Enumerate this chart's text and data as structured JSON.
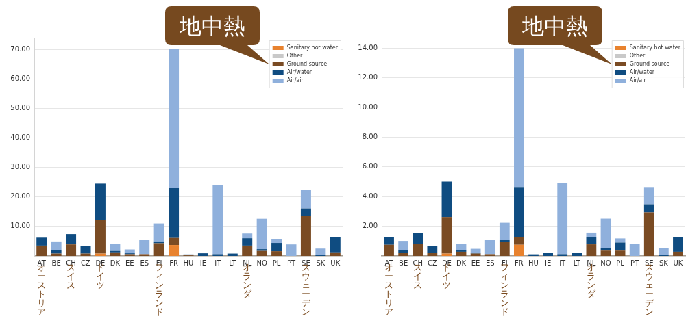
{
  "chart_data": [
    {
      "type": "bar",
      "stacked": true,
      "categories": [
        "AT",
        "BE",
        "CH",
        "CZ",
        "DE",
        "DK",
        "EE",
        "ES",
        "FI",
        "FR",
        "HU",
        "IE",
        "IT",
        "LT",
        "NL",
        "NO",
        "PL",
        "PT",
        "SE",
        "SK",
        "UK"
      ],
      "series": [
        {
          "name": "Sanitary hot water",
          "color": "#e8822e",
          "values": [
            0,
            0,
            0,
            0,
            0.8,
            0,
            0,
            0,
            0,
            3.7,
            0,
            0,
            0,
            0,
            0,
            0,
            0,
            0,
            0,
            0,
            0
          ]
        },
        {
          "name": "Other",
          "color": "#c9c9c9",
          "values": [
            0,
            0,
            0,
            0,
            0,
            0,
            0,
            0,
            0,
            0,
            0,
            0,
            0,
            0,
            0,
            0,
            0,
            0,
            0,
            0,
            0
          ]
        },
        {
          "name": "Ground source",
          "color": "#7a4b23",
          "values": [
            3.5,
            0.8,
            3.9,
            0.8,
            11.5,
            1.2,
            0.6,
            0.6,
            4.3,
            2.4,
            0.2,
            0,
            0,
            0,
            3.5,
            1.7,
            1.6,
            0,
            13.6,
            0,
            1.2
          ]
        },
        {
          "name": "Air/water",
          "color": "#0f4c81",
          "values": [
            2.7,
            1.1,
            3.5,
            2.5,
            12.2,
            0.5,
            0.3,
            0,
            0.6,
            17.0,
            0.3,
            0.9,
            0.6,
            0.8,
            2.5,
            0.6,
            2.8,
            0,
            2.5,
            0.4,
            5.2
          ]
        },
        {
          "name": "Air/air",
          "color": "#8fb0dc",
          "values": [
            0,
            3.0,
            0,
            0,
            0,
            2.3,
            1.3,
            4.8,
            6.1,
            47.2,
            0,
            0,
            23.5,
            0,
            1.6,
            10.3,
            1.4,
            3.9,
            6.3,
            2.1,
            0
          ]
        }
      ],
      "ylim": [
        0,
        74
      ],
      "yticks": [
        {
          "value": 10,
          "label": "10.00"
        },
        {
          "value": 20,
          "label": "20.00"
        },
        {
          "value": 30,
          "label": "30.00"
        },
        {
          "value": 40,
          "label": "40.00"
        },
        {
          "value": 50,
          "label": "50.00"
        },
        {
          "value": 60,
          "label": "60.00"
        },
        {
          "value": 70,
          "label": "70.00"
        }
      ],
      "grid": "y",
      "legend": "top right",
      "annotations": [
        "地中熱",
        "オーストリア",
        "スイス",
        "ドイツ",
        "フィンランド",
        "オランダ",
        "スウェーデン"
      ]
    },
    {
      "type": "bar",
      "stacked": true,
      "categories": [
        "AT",
        "BE",
        "CH",
        "CZ",
        "DE",
        "DK",
        "EE",
        "ES",
        "FI",
        "FR",
        "HU",
        "IE",
        "IT",
        "LT",
        "NL",
        "NO",
        "PL",
        "PT",
        "SE",
        "SK",
        "UK"
      ],
      "series": [
        {
          "name": "Sanitary hot water",
          "color": "#e8822e",
          "values": [
            0,
            0,
            0,
            0,
            0.16,
            0,
            0,
            0,
            0,
            0.75,
            0,
            0,
            0,
            0,
            0,
            0,
            0,
            0,
            0,
            0,
            0
          ]
        },
        {
          "name": "Other",
          "color": "#c9c9c9",
          "values": [
            0,
            0,
            0,
            0,
            0,
            0,
            0,
            0,
            0,
            0,
            0,
            0,
            0,
            0,
            0,
            0,
            0,
            0,
            0,
            0,
            0
          ]
        },
        {
          "name": "Ground source",
          "color": "#7a4b23",
          "values": [
            0.75,
            0.2,
            0.83,
            0.2,
            2.46,
            0.28,
            0.16,
            0.12,
            0.95,
            0.5,
            0,
            0,
            0,
            0,
            0.78,
            0.36,
            0.36,
            0,
            2.93,
            0,
            0.28
          ]
        },
        {
          "name": "Air/water",
          "color": "#0f4c81",
          "values": [
            0.54,
            0.19,
            0.7,
            0.47,
            2.38,
            0.11,
            0.07,
            0,
            0.14,
            3.39,
            0.11,
            0.2,
            0.12,
            0.2,
            0.48,
            0.19,
            0.54,
            0,
            0.55,
            0.08,
            0.98
          ]
        },
        {
          "name": "Air/air",
          "color": "#8fb0dc",
          "values": [
            0,
            0.62,
            0,
            0,
            0,
            0.4,
            0.25,
            0.98,
            1.14,
            9.35,
            0,
            0,
            4.76,
            0,
            0.31,
            1.96,
            0.28,
            0.79,
            1.16,
            0.43,
            0
          ]
        }
      ],
      "ylim": [
        0,
        14.7
      ],
      "yticks": [
        {
          "value": 2,
          "label": "2.00"
        },
        {
          "value": 4,
          "label": "4.00"
        },
        {
          "value": 6,
          "label": "6.00"
        },
        {
          "value": 8,
          "label": "8.00"
        },
        {
          "value": 10,
          "label": "10.00"
        },
        {
          "value": 12,
          "label": "12.00"
        },
        {
          "value": 14,
          "label": "14.00"
        }
      ],
      "grid": "y",
      "legend": "top right",
      "annotations": [
        "地中熱",
        "オーストリア",
        "スイス",
        "ドイツ",
        "フィンランド",
        "オランダ",
        "スウェーデン"
      ]
    }
  ]
}
